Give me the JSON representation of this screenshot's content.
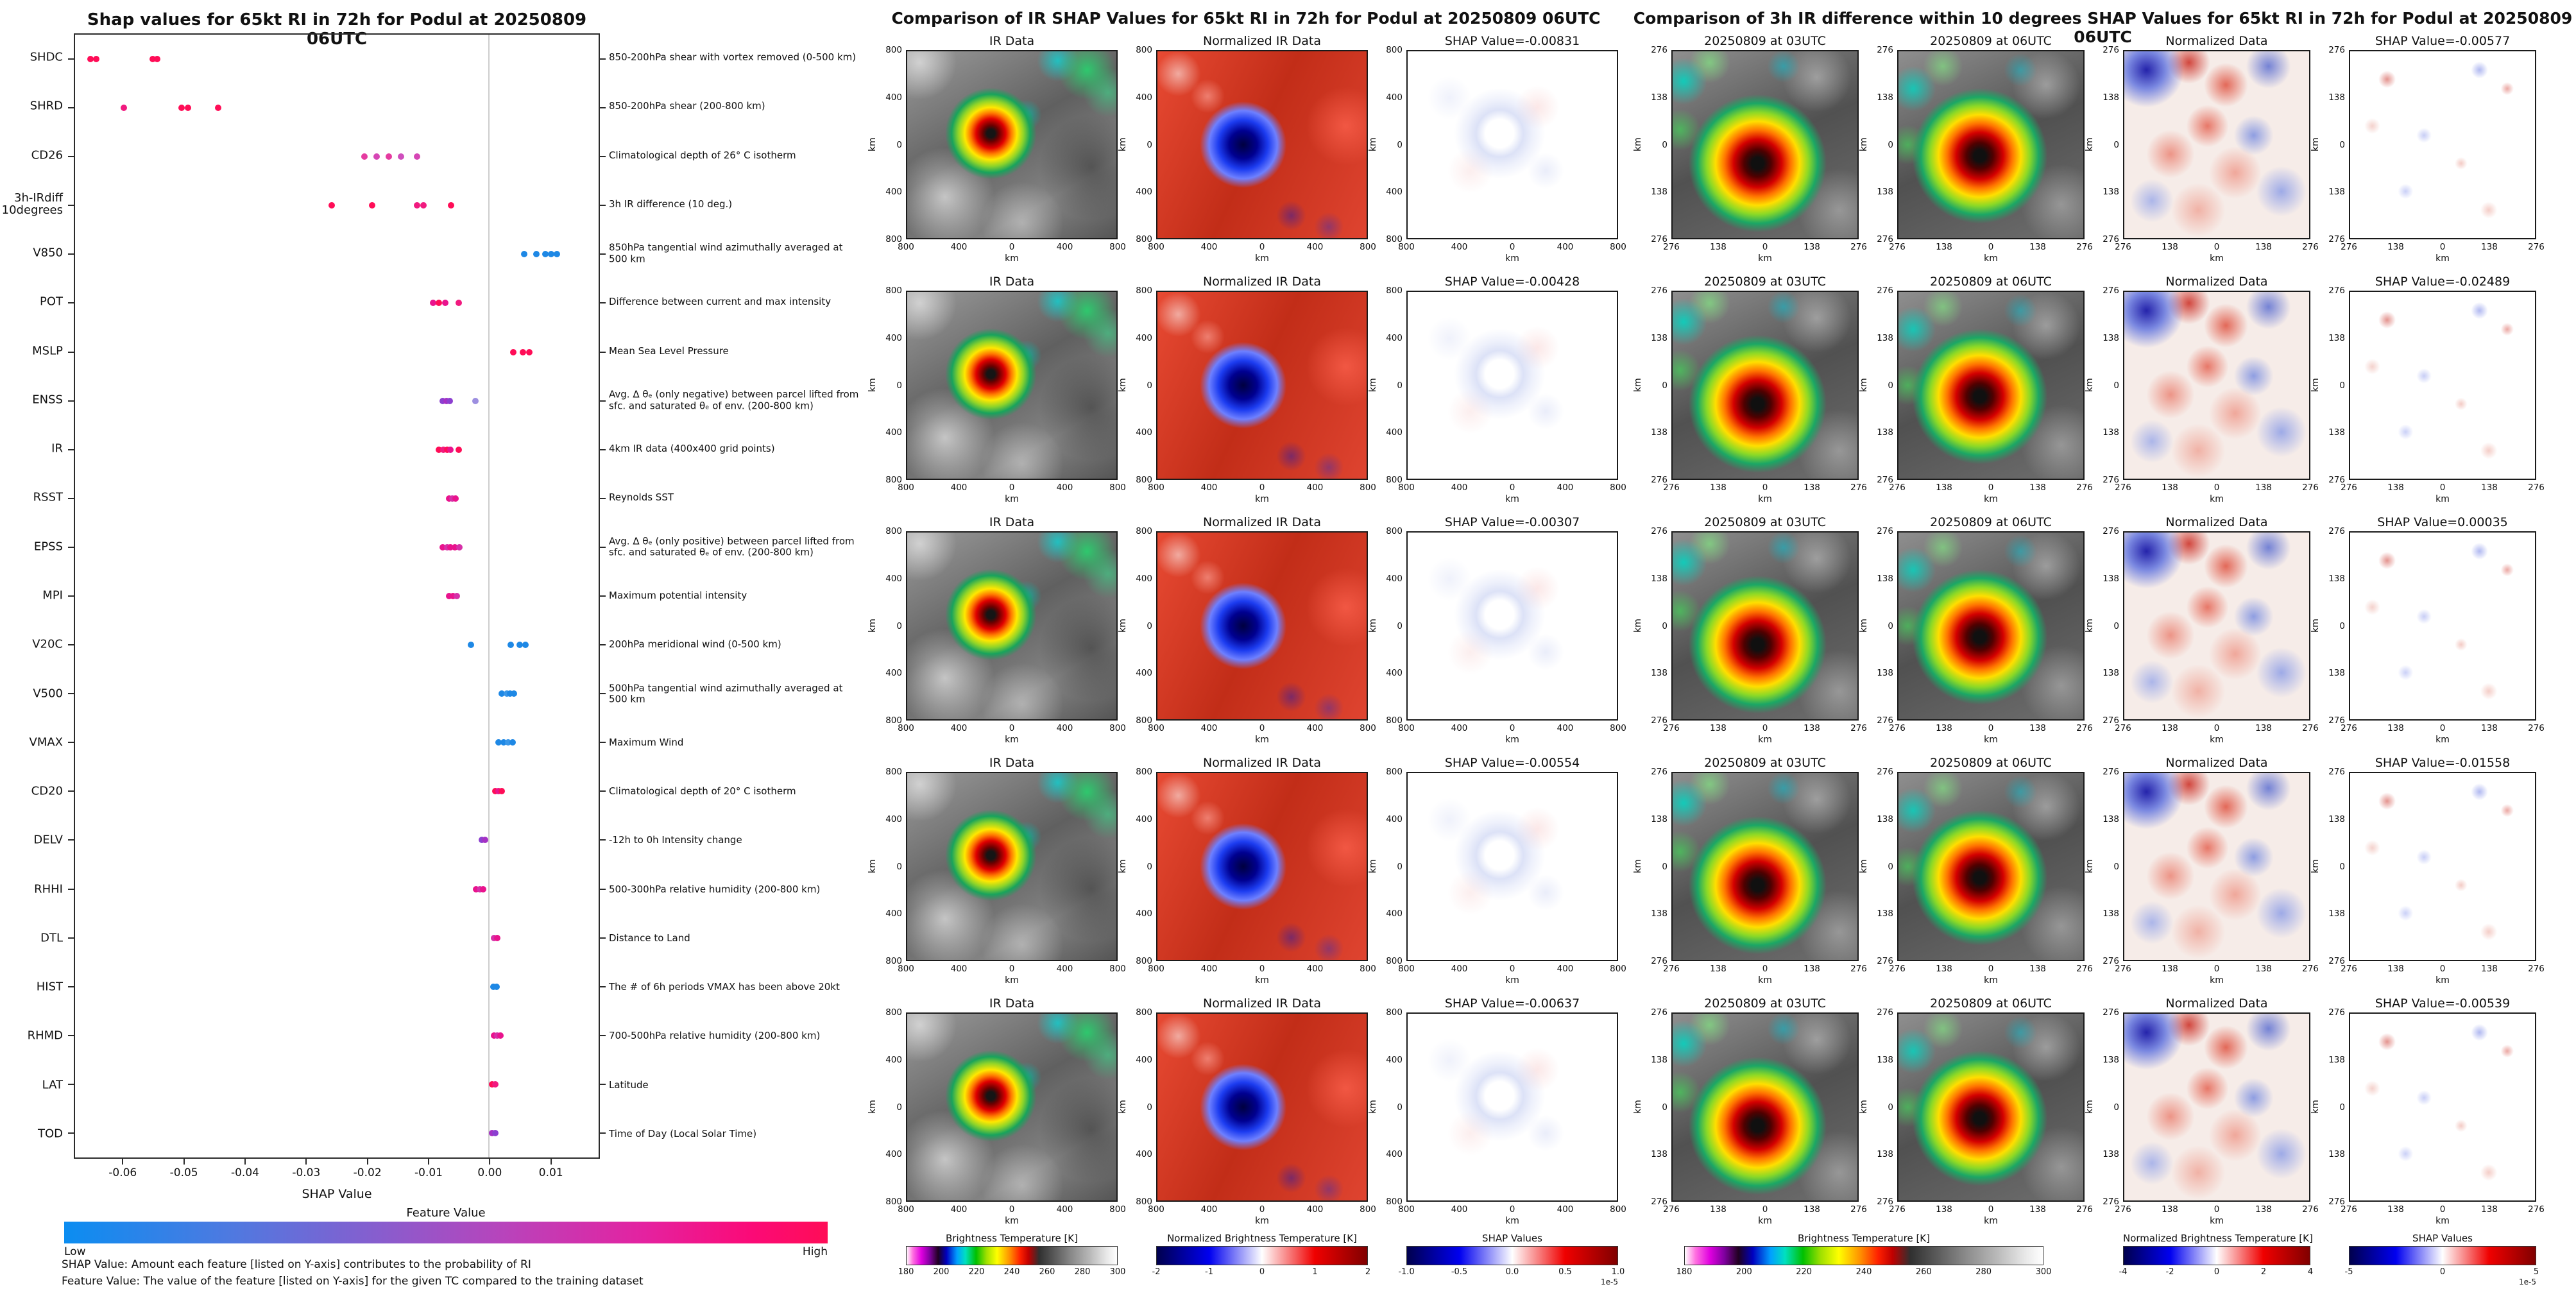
{
  "accent_colors": {
    "shap_high": "#ff0d57",
    "shap_low": "#1E88E5",
    "zero_line": "#cdcdcd"
  },
  "chart_data": [
    {
      "type": "scatter",
      "title": "Shap values for 65kt RI in 72h for Podul at 20250809 06UTC",
      "xlabel": "SHAP Value",
      "xlim": [
        -0.068,
        0.018
      ],
      "grid": false,
      "x_ticks": [
        {
          "v": -0.06,
          "label": "-0.06"
        },
        {
          "v": -0.05,
          "label": "-0.05"
        },
        {
          "v": -0.04,
          "label": "-0.04"
        },
        {
          "v": -0.03,
          "label": "-0.03"
        },
        {
          "v": -0.02,
          "label": "-0.02"
        },
        {
          "v": -0.01,
          "label": "-0.01"
        },
        {
          "v": 0.0,
          "label": "0.00"
        },
        {
          "v": 0.01,
          "label": "0.01"
        }
      ],
      "colorbar": {
        "label": "Feature Value",
        "low": "Low",
        "high": "High"
      },
      "captions": [
        "SHAP Value: Amount each feature [listed on Y-axis] contributes to the probability of RI",
        "Feature Value: The value of the feature [listed on Y-axis] for the given TC compared to the training dataset"
      ],
      "features": [
        {
          "name": "SHDC",
          "desc": "850-200hPa shear with vortex removed (0-500 km)",
          "points": [
            {
              "v": -0.0655,
              "c": "#ff0d57"
            },
            {
              "v": -0.0645,
              "c": "#ff0d57"
            },
            {
              "v": -0.0553,
              "c": "#ff0d57"
            },
            {
              "v": -0.0545,
              "c": "#ff0d57"
            }
          ]
        },
        {
          "name": "SHRD",
          "desc": "850-200hPa shear (200-800 km)",
          "points": [
            {
              "v": -0.06,
              "c": "#f11a7f"
            },
            {
              "v": -0.0505,
              "c": "#ff0d57"
            },
            {
              "v": -0.0495,
              "c": "#ff0d57"
            },
            {
              "v": -0.0445,
              "c": "#ff0d57"
            }
          ]
        },
        {
          "name": "CD26",
          "desc": "Climatological depth of 26° C isotherm",
          "points": [
            {
              "v": -0.0205,
              "c": "#e53ba0"
            },
            {
              "v": -0.0185,
              "c": "#d646b5"
            },
            {
              "v": -0.0165,
              "c": "#e53ba0"
            },
            {
              "v": -0.0145,
              "c": "#cf4fbd"
            },
            {
              "v": -0.0118,
              "c": "#d646b5"
            }
          ]
        },
        {
          "name": "3h-IRdiff\n10degrees",
          "desc": "3h IR difference (10 deg.)",
          "points": [
            {
              "v": -0.0258,
              "c": "#ff0d57"
            },
            {
              "v": -0.0192,
              "c": "#ff0d57"
            },
            {
              "v": -0.0118,
              "c": "#f11a7f"
            },
            {
              "v": -0.0108,
              "c": "#f11a7f"
            },
            {
              "v": -0.0062,
              "c": "#ff0d57"
            }
          ]
        },
        {
          "name": "V850",
          "desc": "850hPa tangential wind azimuthally averaged at 500 km",
          "points": [
            {
              "v": 0.0058,
              "c": "#1E88E5"
            },
            {
              "v": 0.0078,
              "c": "#1E88E5"
            },
            {
              "v": 0.0092,
              "c": "#1E88E5"
            },
            {
              "v": 0.0102,
              "c": "#1E88E5"
            },
            {
              "v": 0.0112,
              "c": "#1E88E5"
            }
          ]
        },
        {
          "name": "POT",
          "desc": "Difference between current and max intensity",
          "points": [
            {
              "v": -0.0092,
              "c": "#e9138d"
            },
            {
              "v": -0.0082,
              "c": "#ff0d57"
            },
            {
              "v": -0.0072,
              "c": "#e9138d"
            },
            {
              "v": -0.005,
              "c": "#f11a7f"
            }
          ]
        },
        {
          "name": "MSLP",
          "desc": "Mean Sea Level Pressure",
          "points": [
            {
              "v": 0.004,
              "c": "#ff0d57"
            },
            {
              "v": 0.0056,
              "c": "#ff0d57"
            },
            {
              "v": 0.0066,
              "c": "#ff0d57"
            }
          ]
        },
        {
          "name": "ENSS",
          "desc": "Avg. Δ θₑ (only negative) between parcel lifted from sfc. and saturated θₑ of env. (200-800 km)",
          "points": [
            {
              "v": -0.0076,
              "c": "#8c3fd0"
            },
            {
              "v": -0.007,
              "c": "#a431c4"
            },
            {
              "v": -0.0064,
              "c": "#8c3fd0"
            },
            {
              "v": -0.0022,
              "c": "#9d8fe0"
            }
          ]
        },
        {
          "name": "IR",
          "desc": "4km IR data (400x400 grid points)",
          "points": [
            {
              "v": -0.0082,
              "c": "#ff0d57"
            },
            {
              "v": -0.0075,
              "c": "#f11a7f"
            },
            {
              "v": -0.0069,
              "c": "#ff0d57"
            },
            {
              "v": -0.0063,
              "c": "#e9138d"
            },
            {
              "v": -0.005,
              "c": "#ff0d57"
            }
          ]
        },
        {
          "name": "RSST",
          "desc": "Reynolds SST",
          "points": [
            {
              "v": -0.0066,
              "c": "#e9138d"
            },
            {
              "v": -0.006,
              "c": "#d630a8"
            },
            {
              "v": -0.0055,
              "c": "#e9138d"
            }
          ]
        },
        {
          "name": "EPSS",
          "desc": "Avg. Δ θₑ (only positive) between parcel lifted from sfc. and saturated θₑ of env. (200-800 km)",
          "points": [
            {
              "v": -0.0076,
              "c": "#e9138d"
            },
            {
              "v": -0.0069,
              "c": "#d630a8"
            },
            {
              "v": -0.0063,
              "c": "#e9138d"
            },
            {
              "v": -0.0056,
              "c": "#e9138d"
            },
            {
              "v": -0.0049,
              "c": "#d630a8"
            }
          ]
        },
        {
          "name": "MPI",
          "desc": "Maximum potential intensity",
          "points": [
            {
              "v": -0.0066,
              "c": "#e9138d"
            },
            {
              "v": -0.0059,
              "c": "#e9138d"
            },
            {
              "v": -0.0053,
              "c": "#d630a8"
            }
          ]
        },
        {
          "name": "V20C",
          "desc": "200hPa meridional wind (0-500 km)",
          "points": [
            {
              "v": -0.003,
              "c": "#1E88E5"
            },
            {
              "v": 0.0036,
              "c": "#1E88E5"
            },
            {
              "v": 0.005,
              "c": "#1E88E5"
            },
            {
              "v": 0.006,
              "c": "#1E88E5"
            }
          ]
        },
        {
          "name": "V500",
          "desc": "500hPa tangential wind azimuthally averaged at 500 km",
          "points": [
            {
              "v": 0.0021,
              "c": "#1E88E5"
            },
            {
              "v": 0.0029,
              "c": "#3a97e8"
            },
            {
              "v": 0.0035,
              "c": "#1E88E5"
            },
            {
              "v": 0.0041,
              "c": "#1E88E5"
            }
          ]
        },
        {
          "name": "VMAX",
          "desc": "Maximum Wind",
          "points": [
            {
              "v": 0.0016,
              "c": "#1E88E5"
            },
            {
              "v": 0.0024,
              "c": "#1E88E5"
            },
            {
              "v": 0.0031,
              "c": "#3a97e8"
            },
            {
              "v": 0.0039,
              "c": "#1E88E5"
            }
          ]
        },
        {
          "name": "CD20",
          "desc": "Climatological depth of 20° C isotherm",
          "points": [
            {
              "v": 0.001,
              "c": "#ff0d57"
            },
            {
              "v": 0.0016,
              "c": "#e9138d"
            },
            {
              "v": 0.0021,
              "c": "#ff0d57"
            }
          ]
        },
        {
          "name": "DELV",
          "desc": "-12h to 0h Intensity change",
          "points": [
            {
              "v": -0.0012,
              "c": "#8c3fd0"
            },
            {
              "v": -0.0007,
              "c": "#a431c4"
            }
          ]
        },
        {
          "name": "RHHI",
          "desc": "500-300hPa relative humidity (200-800 km)",
          "points": [
            {
              "v": -0.0021,
              "c": "#e9138d"
            },
            {
              "v": -0.0015,
              "c": "#d630a8"
            },
            {
              "v": -0.001,
              "c": "#e9138d"
            }
          ]
        },
        {
          "name": "DTL",
          "desc": "Distance to Land",
          "points": [
            {
              "v": 0.0008,
              "c": "#d630a8"
            },
            {
              "v": 0.0013,
              "c": "#e9138d"
            }
          ]
        },
        {
          "name": "HIST",
          "desc": "The # of 6h periods VMAX has been above 20kt",
          "points": [
            {
              "v": 0.0007,
              "c": "#1E88E5"
            },
            {
              "v": 0.0012,
              "c": "#1E88E5"
            }
          ]
        },
        {
          "name": "RHMD",
          "desc": "700-500hPa relative humidity (200-800 km)",
          "points": [
            {
              "v": 0.0008,
              "c": "#e9138d"
            },
            {
              "v": 0.0014,
              "c": "#d630a8"
            },
            {
              "v": 0.0019,
              "c": "#e9138d"
            }
          ]
        },
        {
          "name": "LAT",
          "desc": "Latitude",
          "points": [
            {
              "v": 0.0005,
              "c": "#ff0d57"
            },
            {
              "v": 0.001,
              "c": "#f11a7f"
            }
          ]
        },
        {
          "name": "TOD",
          "desc": "Time of Day (Local Solar Time)",
          "points": [
            {
              "v": 0.0005,
              "c": "#a431c4"
            },
            {
              "v": 0.001,
              "c": "#8c3fd0"
            }
          ]
        }
      ]
    },
    {
      "type": "heatmap",
      "title": "Comparison of IR SHAP Values for 65kt RI in 72h for Podul at 20250809 06UTC",
      "axis_label": "km",
      "axis_ticks": [
        "800",
        "400",
        "0",
        "400",
        "800"
      ],
      "columns": [
        {
          "title": "IR Data",
          "style": "ir"
        },
        {
          "title": "Normalized IR Data",
          "style": "nir"
        },
        {
          "from_row": true,
          "style": "shapm"
        }
      ],
      "rows": [
        {
          "shap_title": "SHAP Value=-0.00831"
        },
        {
          "shap_title": "SHAP Value=-0.00428"
        },
        {
          "shap_title": "SHAP Value=-0.00307"
        },
        {
          "shap_title": "SHAP Value=-0.00554"
        },
        {
          "shap_title": "SHAP Value=-0.00637"
        }
      ],
      "colorbars": [
        {
          "label": "Brightness Temperature [K]",
          "style": "bt",
          "ticks": [
            "180",
            "200",
            "220",
            "240",
            "260",
            "280",
            "300"
          ]
        },
        {
          "label": "Normalized Brightness Temperature [K]",
          "style": "seis",
          "ticks": [
            "-2",
            "-1",
            "0",
            "1",
            "2"
          ]
        },
        {
          "label": "SHAP Values",
          "style": "seis",
          "ticks": [
            "-1.0",
            "-0.5",
            "0.0",
            "0.5",
            "1.0"
          ],
          "exp": "1e-5"
        }
      ]
    },
    {
      "type": "heatmap",
      "title": "Comparison of 3h IR difference within 10 degrees SHAP Values for 65kt RI in 72h for Podul at 20250809 06UTC",
      "axis_label": "km",
      "axis_ticks": [
        "276",
        "138",
        "0",
        "138",
        "276"
      ],
      "columns": [
        {
          "title": "20250809 at 03UTC",
          "style": "ir3"
        },
        {
          "title": "20250809 at 06UTC",
          "style": "ir6"
        },
        {
          "title": "Normalized Data",
          "style": "ndiff"
        },
        {
          "from_row": true,
          "style": "shapr"
        }
      ],
      "rows": [
        {
          "shap_title": "SHAP Value=-0.00577"
        },
        {
          "shap_title": "SHAP Value=-0.02489"
        },
        {
          "shap_title": "SHAP Value=0.00035"
        },
        {
          "shap_title": "SHAP Value=-0.01558"
        },
        {
          "shap_title": "SHAP Value=-0.00539"
        }
      ],
      "colorbars": [
        {
          "label": "Brightness Temperature [K]",
          "style": "bt",
          "ticks": [
            "180",
            "200",
            "220",
            "240",
            "260",
            "280",
            "300"
          ]
        },
        {
          "label": "Normalized Brightness Temperature [K]",
          "style": "seis",
          "ticks": [
            "-4",
            "-2",
            "0",
            "2",
            "4"
          ]
        },
        {
          "label": "SHAP Values",
          "style": "seis",
          "ticks": [
            "-5",
            "0",
            "5"
          ],
          "exp": "1e-5"
        }
      ]
    }
  ]
}
